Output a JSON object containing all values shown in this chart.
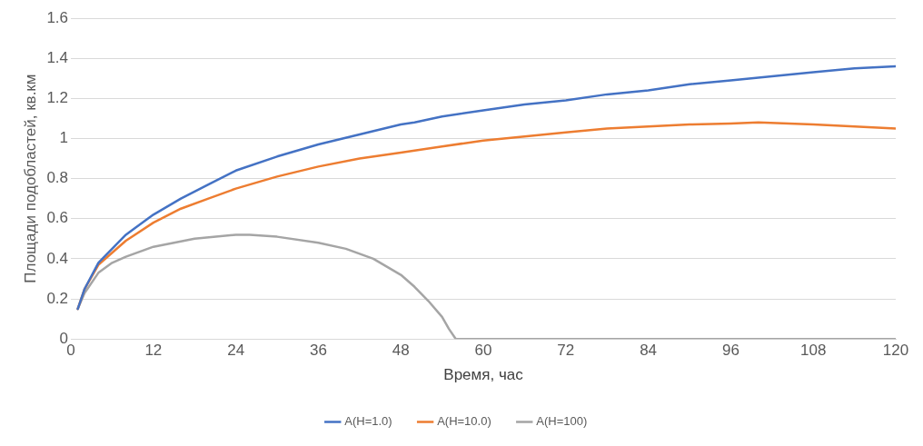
{
  "chart_data": {
    "type": "line",
    "xlabel": "Время, час",
    "ylabel": "Площади подобластей, кв.км",
    "xlim": [
      0,
      120
    ],
    "xticks": [
      0,
      12,
      24,
      36,
      48,
      60,
      72,
      84,
      96,
      108,
      120
    ],
    "ylim": [
      0,
      1.6
    ],
    "yticks": [
      0,
      0.2,
      0.4,
      0.6,
      0.8,
      1,
      1.2,
      1.4,
      1.6
    ],
    "grid": "y",
    "legend": "bottom",
    "marker": "none",
    "line_style": "solid",
    "series": [
      {
        "name": "A(H=1.0)",
        "color": "#4472c4",
        "x": [
          1,
          2,
          4,
          6,
          8,
          12,
          16,
          20,
          24,
          30,
          36,
          42,
          48,
          50,
          54,
          60,
          66,
          72,
          78,
          84,
          90,
          96,
          102,
          108,
          114,
          120
        ],
        "values": [
          0.15,
          0.25,
          0.38,
          0.45,
          0.52,
          0.62,
          0.7,
          0.77,
          0.84,
          0.91,
          0.97,
          1.02,
          1.07,
          1.08,
          1.11,
          1.14,
          1.17,
          1.19,
          1.22,
          1.24,
          1.27,
          1.29,
          1.31,
          1.33,
          1.35,
          1.36
        ]
      },
      {
        "name": "A(H=10.0)",
        "color": "#ed7d31",
        "x": [
          1,
          2,
          4,
          6,
          8,
          12,
          16,
          20,
          24,
          30,
          36,
          42,
          48,
          54,
          60,
          66,
          72,
          78,
          84,
          90,
          96,
          100,
          108,
          114,
          120
        ],
        "values": [
          0.15,
          0.25,
          0.37,
          0.43,
          0.49,
          0.58,
          0.65,
          0.7,
          0.75,
          0.81,
          0.86,
          0.9,
          0.93,
          0.96,
          0.99,
          1.01,
          1.03,
          1.05,
          1.06,
          1.07,
          1.075,
          1.08,
          1.07,
          1.06,
          1.05
        ]
      },
      {
        "name": "A(H=100)",
        "color": "#a5a5a5",
        "x": [
          1,
          2,
          4,
          6,
          8,
          12,
          18,
          24,
          26,
          30,
          36,
          40,
          44,
          48,
          50,
          52,
          54,
          55,
          56,
          60,
          72,
          84,
          96,
          108,
          120
        ],
        "values": [
          0.15,
          0.23,
          0.33,
          0.38,
          0.41,
          0.46,
          0.5,
          0.52,
          0.52,
          0.51,
          0.48,
          0.45,
          0.4,
          0.32,
          0.26,
          0.19,
          0.11,
          0.05,
          0,
          0,
          0,
          0,
          0,
          0,
          0
        ]
      }
    ]
  }
}
